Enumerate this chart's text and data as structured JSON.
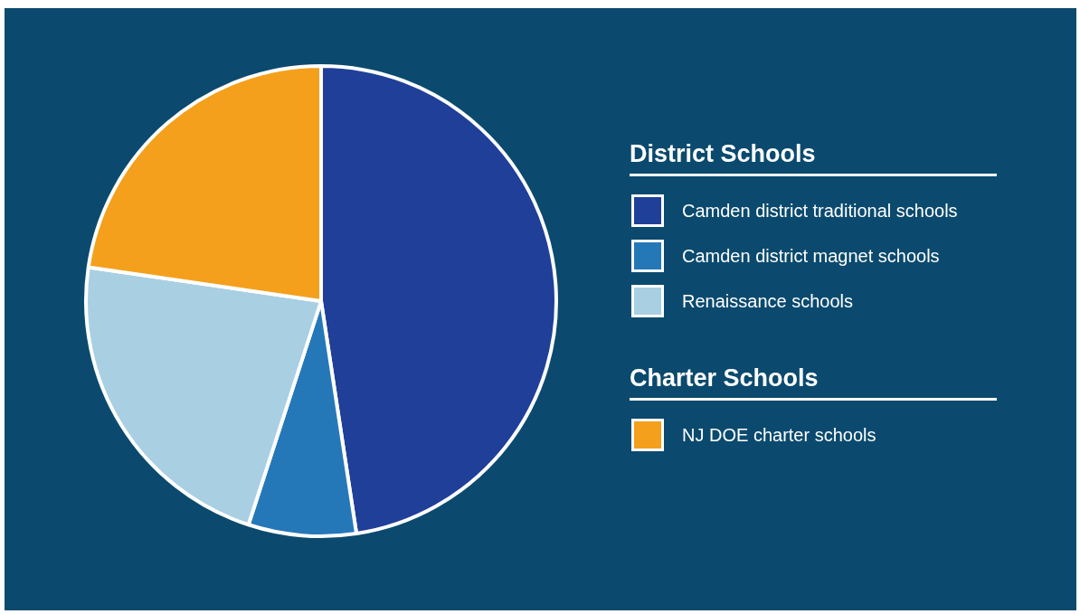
{
  "chart_data": {
    "type": "pie",
    "categories": [
      "Camden district traditional schools",
      "Camden district magnet schools",
      "Renaissance schools",
      "NJ DOE charter schools"
    ],
    "values": [
      47.6,
      7.4,
      22.3,
      22.7
    ],
    "colors": [
      "#1f3f99",
      "#2578b8",
      "#a9cfe3",
      "#f4a01c"
    ],
    "legend": "right",
    "annotations": [
      "District Schools",
      "Charter Schools"
    ]
  }
}
